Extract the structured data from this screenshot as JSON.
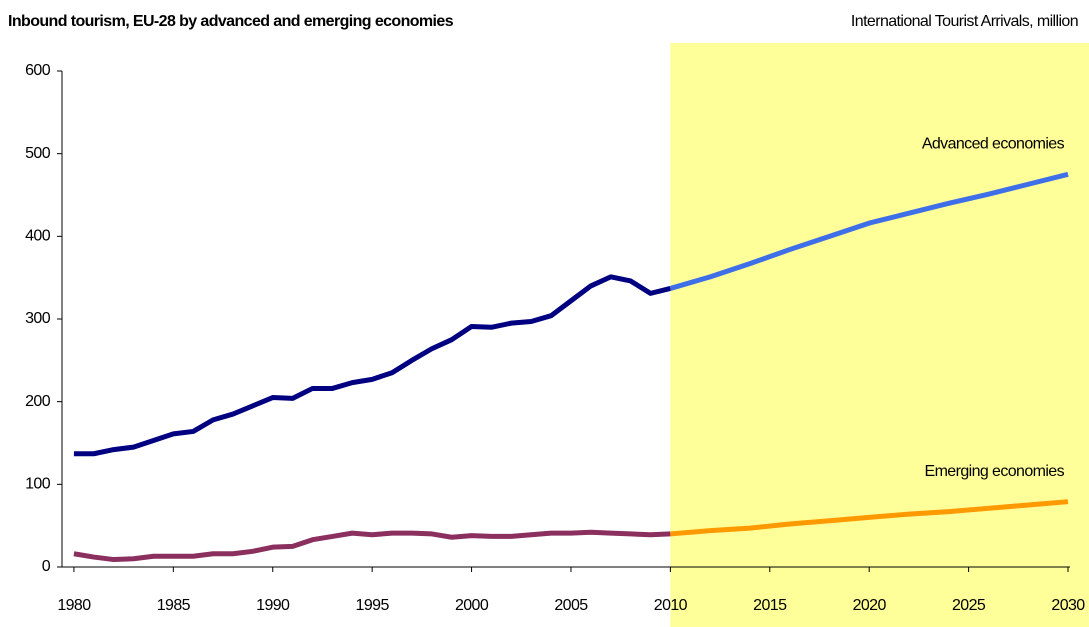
{
  "chart_data": {
    "type": "line",
    "title": "Inbound tourism, EU-28 by advanced and emerging economies",
    "subtitle": "International Tourist Arrivals, million",
    "xlim": [
      1979.4,
      2030.1
    ],
    "xticks": [
      1980,
      1985,
      1990,
      1995,
      2000,
      2005,
      2010,
      2015,
      2020,
      2025,
      2030
    ],
    "ylim": [
      0,
      600
    ],
    "yticks": [
      0,
      100,
      200,
      300,
      400,
      500,
      600
    ],
    "shade": {
      "from": 2010,
      "color": "#ffff99"
    },
    "series": [
      {
        "color": "#000080",
        "x": [
          1980,
          1981,
          1982,
          1983,
          1984,
          1985,
          1986,
          1987,
          1988,
          1989,
          1990,
          1991,
          1992,
          1993,
          1994,
          1995,
          1996,
          1997,
          1998,
          1999,
          2000,
          2001,
          2002,
          2003,
          2004,
          2005,
          2006,
          2007,
          2008,
          2009,
          2010
        ],
        "values": [
          137,
          137,
          142,
          145,
          153,
          161,
          164,
          178,
          185,
          195,
          205,
          204,
          216,
          216,
          223,
          227,
          235,
          250,
          264,
          275,
          291,
          290,
          295,
          297,
          304,
          322,
          340,
          351,
          346,
          331,
          337
        ]
      },
      {
        "name": "Advanced economies",
        "color": "#3f6fe8",
        "x": [
          2010,
          2012,
          2014,
          2016,
          2018,
          2020,
          2022,
          2024,
          2026,
          2028,
          2030
        ],
        "values": [
          337,
          351,
          367,
          384,
          400,
          416,
          428,
          440,
          451,
          463,
          475
        ]
      },
      {
        "color": "#8b2f5f",
        "x": [
          1980,
          1981,
          1982,
          1983,
          1984,
          1985,
          1986,
          1987,
          1988,
          1989,
          1990,
          1991,
          1992,
          1993,
          1994,
          1995,
          1996,
          1997,
          1998,
          1999,
          2000,
          2001,
          2002,
          2003,
          2004,
          2005,
          2006,
          2007,
          2008,
          2009,
          2010
        ],
        "values": [
          16,
          12,
          9,
          10,
          13,
          13,
          13,
          16,
          16,
          19,
          24,
          25,
          33,
          37,
          41,
          39,
          41,
          41,
          40,
          36,
          38,
          37,
          37,
          39,
          41,
          41,
          42,
          41,
          40,
          39,
          40
        ]
      },
      {
        "name": "Emerging economies",
        "color": "#ff9900",
        "x": [
          2010,
          2012,
          2014,
          2016,
          2018,
          2020,
          2022,
          2024,
          2026,
          2028,
          2030
        ],
        "values": [
          40,
          44,
          47,
          52,
          56,
          60,
          64,
          67,
          71,
          75,
          79
        ]
      }
    ]
  }
}
